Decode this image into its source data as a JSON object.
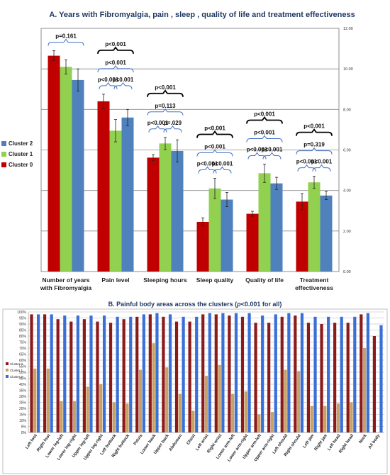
{
  "chart_data": [
    {
      "type": "bar",
      "title": "A. Years with Fibromyalgia, pain , sleep , quality of life and treatment effectiveness",
      "categories": [
        "Number of years with Fibromyalgia",
        "Pain level",
        "Sleeping hours",
        "Sleep quality",
        "Quality of life",
        "Treatment effectiveness"
      ],
      "ylim": [
        0,
        12
      ],
      "yticks": [
        "0.00",
        "2.00",
        "4.00",
        "6.00",
        "8.00",
        "10.00",
        "12.00"
      ],
      "grid": true,
      "legend_position": "left",
      "series": [
        {
          "name": "Cluster 0",
          "color": "#c00000",
          "values": [
            10.65,
            8.4,
            5.62,
            2.45,
            2.85,
            3.45
          ],
          "errors": [
            0.25,
            0.35,
            0.15,
            0.2,
            0.12,
            0.4
          ]
        },
        {
          "name": "Cluster 1",
          "color": "#92d050",
          "values": [
            10.1,
            6.95,
            6.32,
            4.1,
            4.85,
            4.4
          ],
          "errors": [
            0.35,
            0.55,
            0.3,
            0.5,
            0.45,
            0.3
          ]
        },
        {
          "name": "Cluster 2",
          "color": "#4f81bd",
          "values": [
            9.45,
            7.6,
            5.95,
            3.55,
            4.35,
            3.75
          ],
          "errors": [
            0.55,
            0.4,
            0.55,
            0.35,
            0.3,
            0.2
          ]
        }
      ],
      "annotations": [
        [
          "p=0.161"
        ],
        [
          "p<0.001",
          "p<0.001",
          "p<0.001",
          "p<0.001"
        ],
        [
          "p<0.001",
          "p=0.113",
          "p<0.001",
          "p=.029"
        ],
        [
          "p<0.001",
          "p<0.001",
          "p<0.001",
          "p<0.001"
        ],
        [
          "p<0.001",
          "p<0.001",
          "p<0.001",
          "p<0.001"
        ],
        [
          "p<0.001",
          "p=0.319",
          "p<0.001",
          "p<0.001"
        ]
      ]
    },
    {
      "type": "bar",
      "title_prefix": "B. Painful body areas across the clusters (",
      "title_italic": "p",
      "title_suffix": "<0.001 for all)",
      "categories": [
        "Left foot",
        "Right foot",
        "Lower leg-left",
        "Lower leg-right",
        "Upper leg-left",
        "Upper leg-right",
        "Left buttock",
        "Right buttock",
        "Pelvis",
        "Lower back",
        "Upper back",
        "Abdomen",
        "Chest",
        "Left wrist",
        "Right wrist",
        "Lower arm-left",
        "Lower arm-right",
        "Upper arm-left",
        "Upper arm-right",
        "Left should",
        "Right should",
        "Left jaw",
        "Right jaw",
        "Left head",
        "Right head",
        "Neck",
        "All body"
      ],
      "ylim": [
        0,
        100
      ],
      "yticks": [
        "0%",
        "5%",
        "10%",
        "15%",
        "20%",
        "25%",
        "30%",
        "35%",
        "40%",
        "45%",
        "50%",
        "55%",
        "60%",
        "65%",
        "70%",
        "75%",
        "80%",
        "85%",
        "90%",
        "95%",
        "100%"
      ],
      "grid": true,
      "legend_position": "left",
      "series": [
        {
          "name": "Cluster 0",
          "color": "#8b1a1a",
          "values": [
            98,
            98,
            94,
            92,
            94,
            92,
            91,
            94,
            96,
            98,
            96,
            92,
            92,
            98,
            98,
            97,
            96,
            91,
            91,
            96,
            97,
            91,
            90,
            91,
            91,
            98,
            80
          ]
        },
        {
          "name": "Cluster 1",
          "color": "#c8a165",
          "values": [
            53,
            53,
            26,
            26,
            38,
            40,
            25,
            24,
            52,
            74,
            54,
            32,
            18,
            47,
            56,
            32,
            34,
            15,
            17,
            52,
            51,
            22,
            22,
            24,
            25,
            70,
            0
          ]
        },
        {
          "name": "Cluster 2",
          "color": "#3a6fd8",
          "values": [
            98,
            98,
            97,
            97,
            97,
            97,
            96,
            96,
            98,
            99,
            98,
            96,
            96,
            99,
            99,
            99,
            99,
            97,
            98,
            99,
            99,
            96,
            96,
            96,
            96,
            99,
            89
          ]
        }
      ]
    }
  ]
}
